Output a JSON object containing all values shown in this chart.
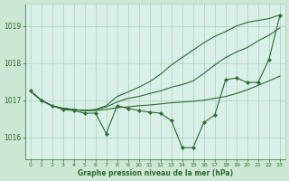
{
  "bg_color": "#cce8d4",
  "plot_bg_color": "#d8f0e8",
  "grid_color": "#aacfbb",
  "line_color": "#2d6a2d",
  "marker_color": "#2d6a2d",
  "xlabel": "Graphe pression niveau de la mer (hPa)",
  "xlabel_color": "#2d6a2d",
  "ylabel_color": "#2d6a2d",
  "tick_color": "#2d6a2d",
  "yticks": [
    1016,
    1017,
    1018,
    1019
  ],
  "xticks": [
    0,
    1,
    2,
    3,
    4,
    5,
    6,
    7,
    8,
    9,
    10,
    11,
    12,
    13,
    14,
    15,
    16,
    17,
    18,
    19,
    20,
    21,
    22,
    23
  ],
  "xlim": [
    -0.5,
    23.5
  ],
  "ylim": [
    1015.4,
    1019.6
  ],
  "line1_y": [
    1017.25,
    1017.0,
    1016.85,
    1016.78,
    1016.75,
    1016.72,
    1016.72,
    1016.75,
    1016.8,
    1016.82,
    1016.85,
    1016.87,
    1016.9,
    1016.93,
    1016.95,
    1016.97,
    1017.0,
    1017.05,
    1017.1,
    1017.18,
    1017.28,
    1017.4,
    1017.52,
    1017.65
  ],
  "line2_y": [
    1017.25,
    1017.0,
    1016.85,
    1016.78,
    1016.75,
    1016.72,
    1016.74,
    1016.82,
    1016.95,
    1017.05,
    1017.1,
    1017.18,
    1017.25,
    1017.35,
    1017.42,
    1017.52,
    1017.72,
    1017.95,
    1018.15,
    1018.3,
    1018.42,
    1018.6,
    1018.75,
    1018.95
  ],
  "line3_y": [
    1017.25,
    1017.0,
    1016.85,
    1016.78,
    1016.75,
    1016.72,
    1016.75,
    1016.85,
    1017.1,
    1017.22,
    1017.35,
    1017.5,
    1017.7,
    1017.95,
    1018.15,
    1018.35,
    1018.55,
    1018.72,
    1018.85,
    1019.0,
    1019.1,
    1019.15,
    1019.2,
    1019.3
  ],
  "line4_y": [
    1017.25,
    1017.0,
    1016.85,
    1016.75,
    1016.72,
    1016.65,
    1016.65,
    1016.1,
    1016.85,
    1016.78,
    1016.72,
    1016.68,
    1016.65,
    1016.45,
    1015.72,
    1015.72,
    1016.4,
    1016.6,
    1017.55,
    1017.6,
    1017.48,
    1017.48,
    1018.1,
    1019.28
  ]
}
